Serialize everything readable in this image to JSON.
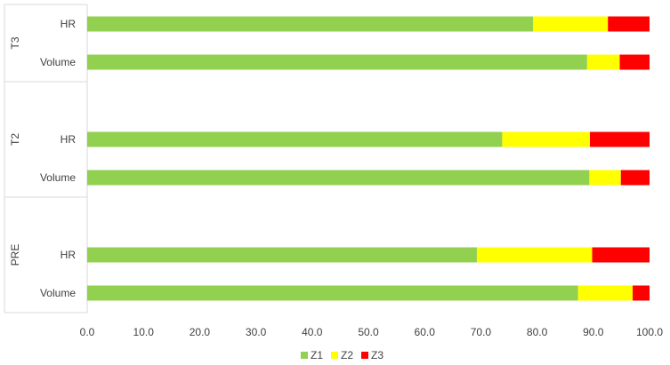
{
  "chart_data": {
    "type": "bar",
    "orientation": "horizontal",
    "stacked": true,
    "groups": [
      {
        "label": "T3",
        "categories": [
          "HR",
          "Volume"
        ]
      },
      {
        "label": "T2",
        "categories": [
          "HR",
          "Volume"
        ]
      },
      {
        "label": "PRE",
        "categories": [
          "HR",
          "Volume"
        ]
      }
    ],
    "series": [
      {
        "name": "Z1",
        "color": "#92d050",
        "values": {
          "T3": [
            79.3,
            88.9
          ],
          "T2": [
            73.8,
            89.3
          ],
          "PRE": [
            69.3,
            87.3
          ]
        }
      },
      {
        "name": "Z2",
        "color": "#ffff00",
        "values": {
          "T3": [
            13.3,
            5.8
          ],
          "T2": [
            15.6,
            5.6
          ],
          "PRE": [
            20.5,
            9.7
          ]
        }
      },
      {
        "name": "Z3",
        "color": "#ff0000",
        "values": {
          "T3": [
            7.4,
            5.3
          ],
          "T2": [
            10.6,
            5.1
          ],
          "PRE": [
            10.2,
            3.0
          ]
        }
      }
    ],
    "xlim": [
      0,
      100
    ],
    "xticks": [
      "0.0",
      "10.0",
      "20.0",
      "30.0",
      "40.0",
      "50.0",
      "60.0",
      "70.0",
      "80.0",
      "90.0",
      "100.0"
    ],
    "grid": false,
    "legend": "bottom"
  }
}
